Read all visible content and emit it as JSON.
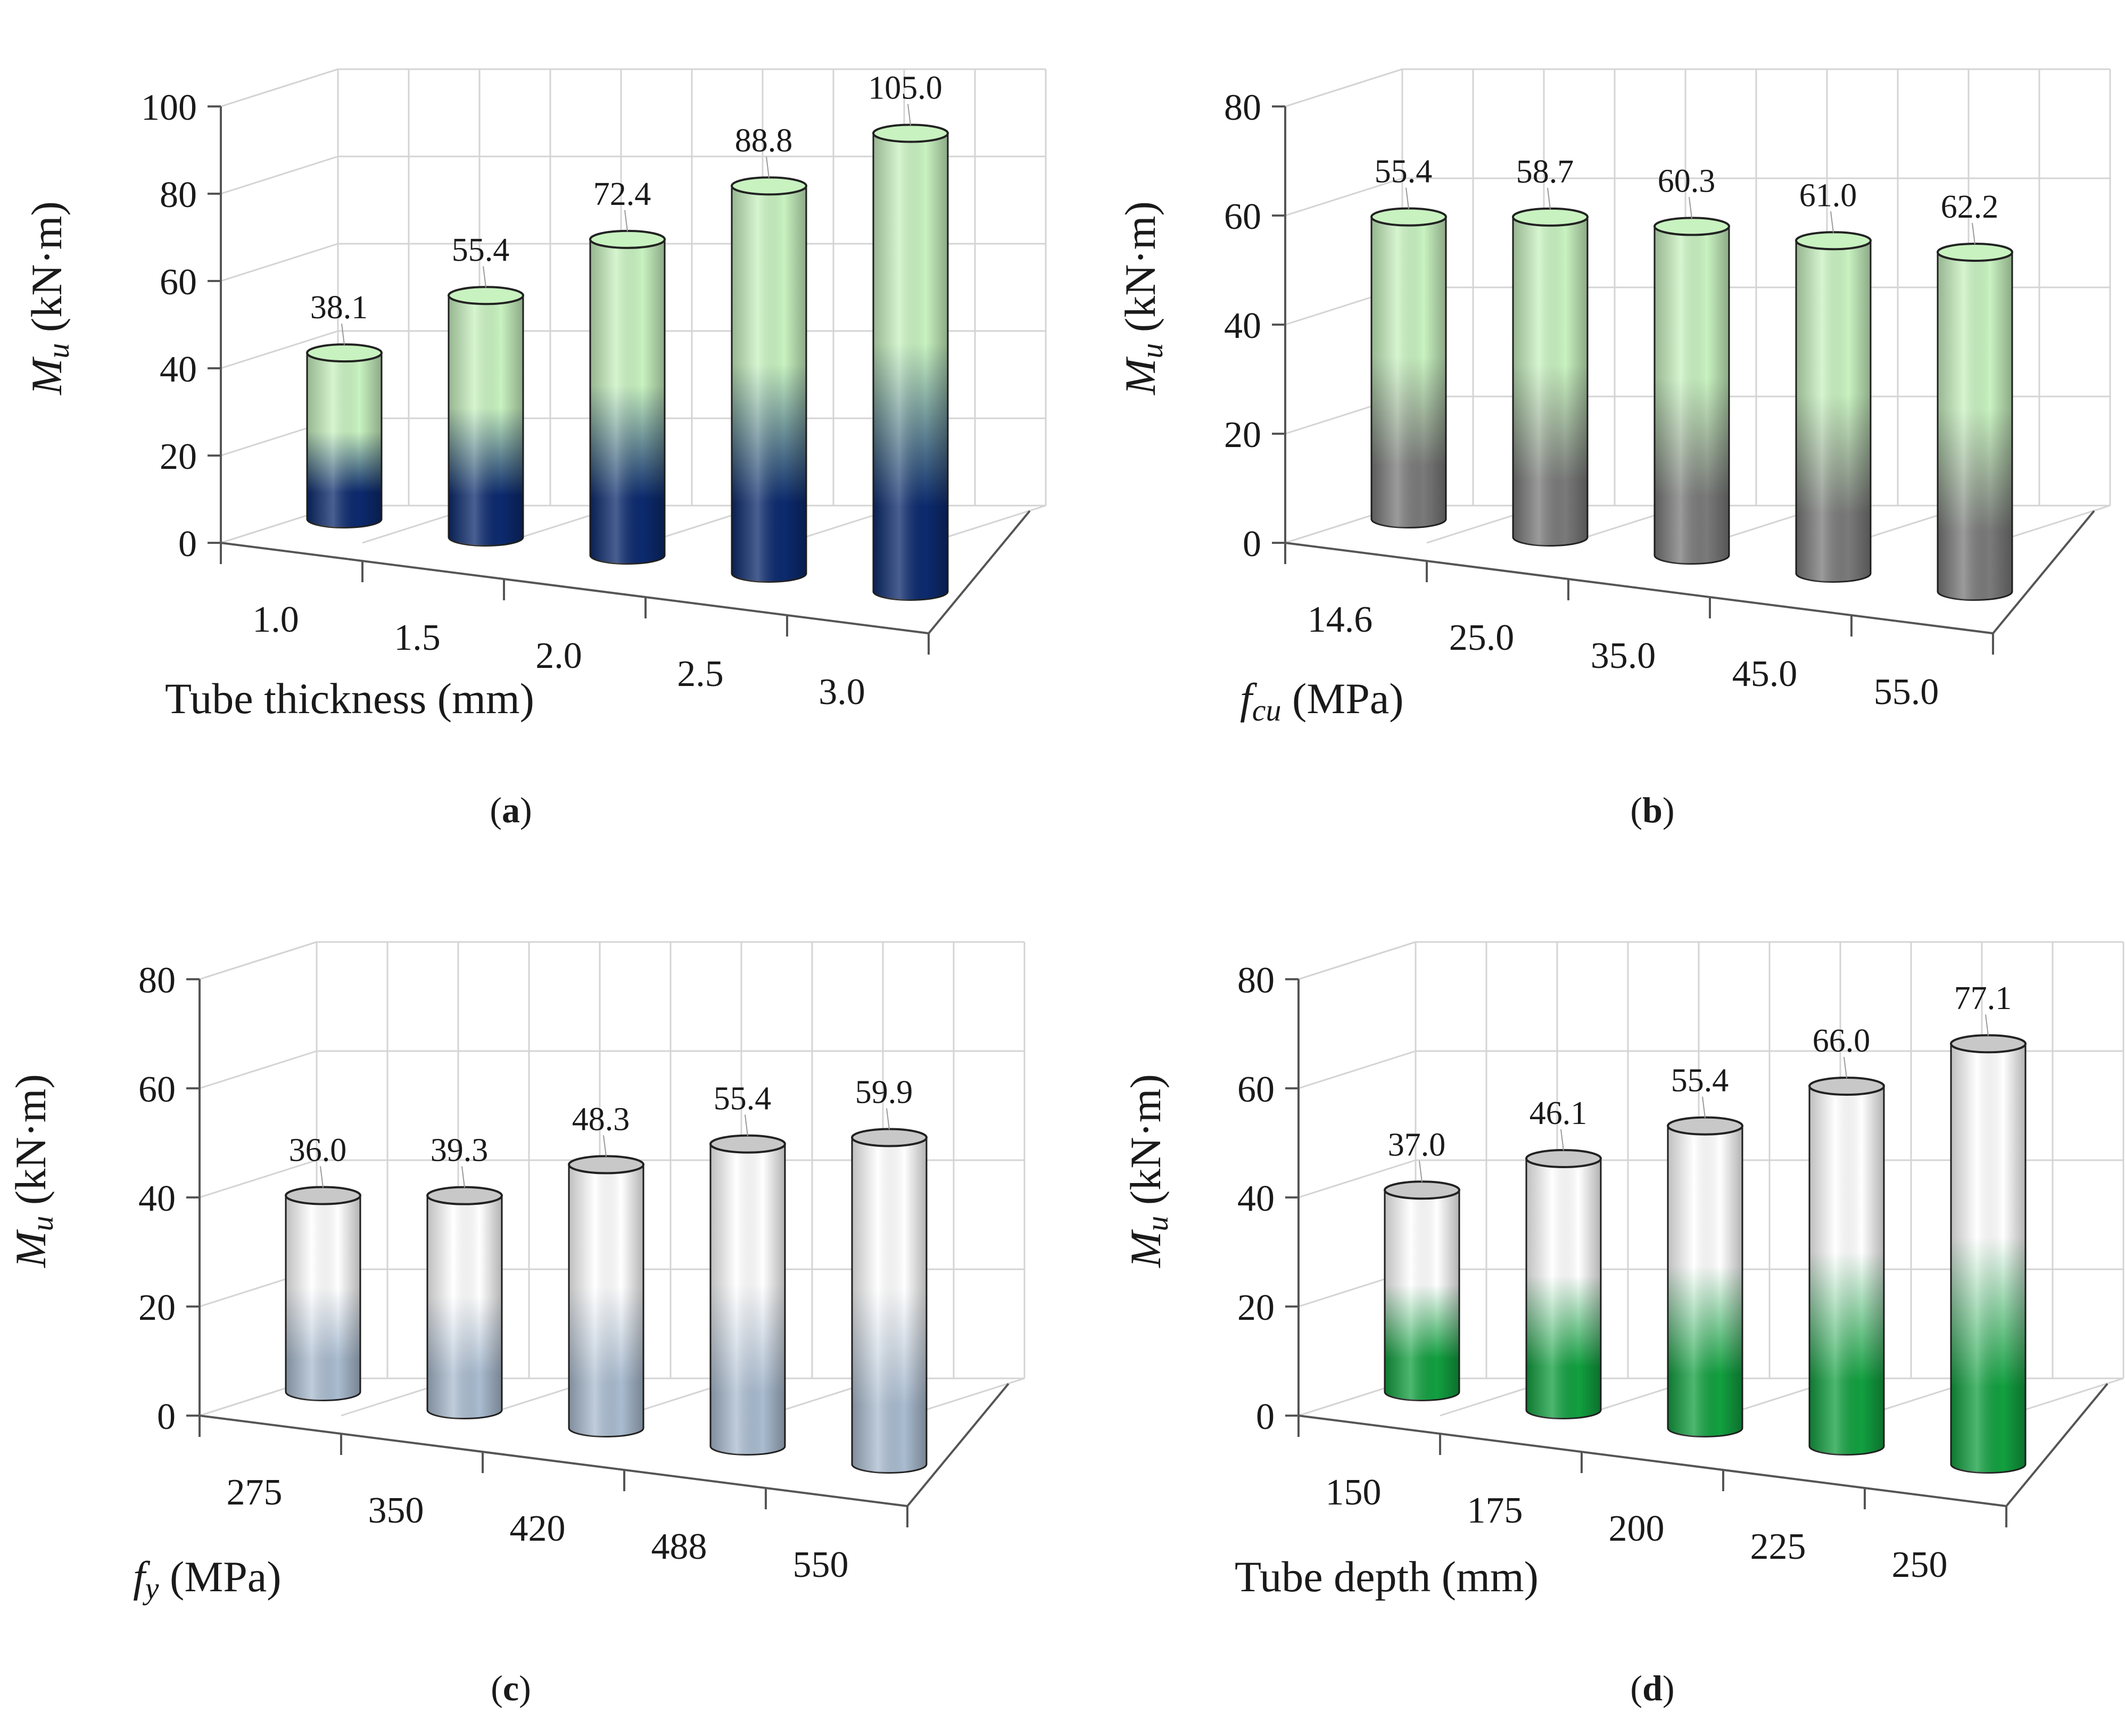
{
  "figure": {
    "ylabel_main": "M",
    "ylabel_sub": "u",
    "ylabel_unit": " (kN·m)"
  },
  "chart_data": [
    {
      "panel": "a",
      "caption": "a",
      "type": "bar",
      "style": "3d-cylinder",
      "xlabel": "Tube thickness (mm)",
      "xlabel_main": "Tube thickness (mm)",
      "xlabel_sub": "",
      "xlabel_tail": "",
      "ylabel": "M_u (kN·m)",
      "ylim": [
        0,
        100
      ],
      "yticks": [
        "0",
        "20",
        "40",
        "60",
        "80",
        "100"
      ],
      "categories": [
        "1.0",
        "1.5",
        "2.0",
        "2.5",
        "3.0"
      ],
      "values": [
        38.1,
        55.4,
        72.4,
        88.8,
        105.0
      ],
      "value_labels": [
        "38.1",
        "55.4",
        "72.4",
        "88.8",
        "105.0"
      ],
      "colors": {
        "top": "#c8f2c0",
        "bottom": "#0c2a6e"
      }
    },
    {
      "panel": "b",
      "caption": "b",
      "type": "bar",
      "style": "3d-cylinder",
      "xlabel": "f_cu (MPa)",
      "xlabel_main": "f",
      "xlabel_sub": "cu",
      "xlabel_tail": " (MPa)",
      "ylabel": "M_u (kN·m)",
      "ylim": [
        0,
        80
      ],
      "yticks": [
        "0",
        "20",
        "40",
        "60",
        "80"
      ],
      "categories": [
        "14.6",
        "25.0",
        "35.0",
        "45.0",
        "55.0"
      ],
      "values": [
        55.4,
        58.7,
        60.3,
        61.0,
        62.2
      ],
      "value_labels": [
        "55.4",
        "58.7",
        "60.3",
        "61.0",
        "62.2"
      ],
      "colors": {
        "top": "#c8f2c0",
        "bottom": "#7a7a7a"
      }
    },
    {
      "panel": "c",
      "caption": "c",
      "type": "bar",
      "style": "3d-cylinder",
      "xlabel": "f_y (MPa)",
      "xlabel_main": "f",
      "xlabel_sub": "y",
      "xlabel_tail": " (MPa)",
      "ylabel": "M_u (kN·m)",
      "ylim": [
        0,
        80
      ],
      "yticks": [
        "0",
        "20",
        "40",
        "60",
        "80"
      ],
      "categories": [
        "275",
        "350",
        "420",
        "488",
        "550"
      ],
      "values": [
        36.0,
        39.3,
        48.3,
        55.4,
        59.9
      ],
      "value_labels": [
        "36.0",
        "39.3",
        "48.3",
        "55.4",
        "59.9"
      ],
      "colors": {
        "top": "#ffffff",
        "bottom": "#aabcd0"
      }
    },
    {
      "panel": "d",
      "caption": "d",
      "type": "bar",
      "style": "3d-cylinder",
      "xlabel": "Tube depth (mm)",
      "xlabel_main": "Tube depth (mm)",
      "xlabel_sub": "",
      "xlabel_tail": "",
      "ylabel": "M_u (kN·m)",
      "ylim": [
        0,
        80
      ],
      "yticks": [
        "0",
        "20",
        "40",
        "60",
        "80"
      ],
      "categories": [
        "150",
        "175",
        "200",
        "225",
        "250"
      ],
      "values": [
        37.0,
        46.1,
        55.4,
        66.0,
        77.1
      ],
      "value_labels": [
        "37.0",
        "46.1",
        "55.4",
        "66.0",
        "77.1"
      ],
      "colors": {
        "top": "#ffffff",
        "bottom": "#12a040"
      }
    }
  ]
}
